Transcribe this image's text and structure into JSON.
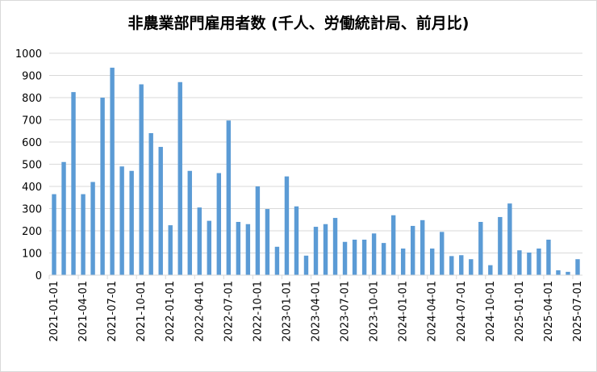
{
  "chart_data": {
    "type": "bar",
    "title": "非農業部門雇用者数 (千人、労働統計局、前月比)",
    "xlabel": "",
    "ylabel": "",
    "ylim": [
      0,
      1000
    ],
    "yticks": [
      0,
      100,
      200,
      300,
      400,
      500,
      600,
      700,
      800,
      900,
      1000
    ],
    "grid": true,
    "legend": "none",
    "bar_color": "#5b9bd5",
    "grid_color": "#d9d9d9",
    "categories": [
      "2021-01-01",
      "2021-02-01",
      "2021-03-01",
      "2021-04-01",
      "2021-05-01",
      "2021-06-01",
      "2021-07-01",
      "2021-08-01",
      "2021-09-01",
      "2021-10-01",
      "2021-11-01",
      "2021-12-01",
      "2022-01-01",
      "2022-02-01",
      "2022-03-01",
      "2022-04-01",
      "2022-05-01",
      "2022-06-01",
      "2022-07-01",
      "2022-08-01",
      "2022-09-01",
      "2022-10-01",
      "2022-11-01",
      "2022-12-01",
      "2023-01-01",
      "2023-02-01",
      "2023-03-01",
      "2023-04-01",
      "2023-05-01",
      "2023-06-01",
      "2023-07-01",
      "2023-08-01",
      "2023-09-01",
      "2023-10-01",
      "2023-11-01",
      "2023-12-01",
      "2024-01-01",
      "2024-02-01",
      "2024-03-01",
      "2024-04-01",
      "2024-05-01",
      "2024-06-01",
      "2024-07-01",
      "2024-08-01",
      "2024-09-01",
      "2024-10-01",
      "2024-11-01",
      "2024-12-01",
      "2025-01-01",
      "2025-02-01",
      "2025-03-01",
      "2025-04-01",
      "2025-05-01",
      "2025-06-01",
      "2025-07-01"
    ],
    "xtick_labels": [
      "2021-01-01",
      "2021-04-01",
      "2021-07-01",
      "2021-10-01",
      "2022-01-01",
      "2022-04-01",
      "2022-07-01",
      "2022-10-01",
      "2023-01-01",
      "2023-04-01",
      "2023-07-01",
      "2023-10-01",
      "2024-01-01",
      "2024-04-01",
      "2024-07-01",
      "2024-10-01",
      "2025-01-01",
      "2025-04-01",
      "2025-07-01"
    ],
    "values": [
      365,
      510,
      825,
      365,
      420,
      800,
      935,
      490,
      470,
      860,
      640,
      578,
      225,
      870,
      470,
      305,
      245,
      460,
      697,
      240,
      230,
      400,
      298,
      128,
      445,
      310,
      88,
      218,
      230,
      258,
      150,
      160,
      160,
      188,
      145,
      270,
      120,
      222,
      248,
      120,
      195,
      86,
      90,
      72,
      240,
      45,
      262,
      323,
      112,
      102,
      120,
      160,
      22,
      15,
      72
    ]
  }
}
